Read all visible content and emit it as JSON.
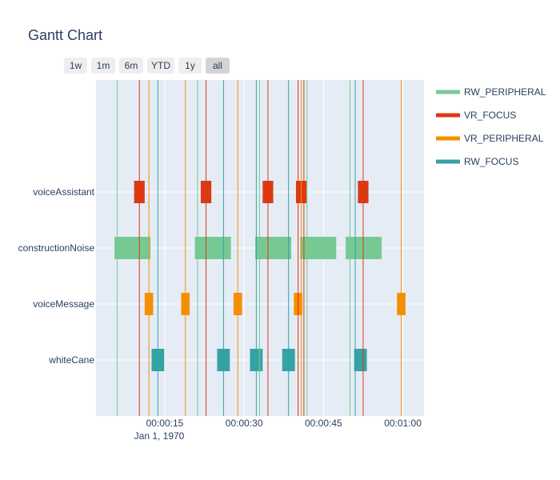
{
  "chart_data": {
    "type": "gantt",
    "title": "Gantt Chart",
    "x_axis": {
      "type": "time",
      "range_seconds": [
        2.0,
        64.0
      ],
      "tick_seconds": [
        15,
        30,
        45,
        60
      ],
      "tick_labels": [
        "00:00:15",
        "00:00:30",
        "00:00:45",
        "00:01:00"
      ],
      "date_label": "Jan 1, 1970"
    },
    "y_axis": {
      "categories": [
        "whiteCane",
        "voiceMessage",
        "constructionNoise",
        "voiceAssistant"
      ]
    },
    "range_selector": [
      "1w",
      "1m",
      "6m",
      "YTD",
      "1y",
      "all"
    ],
    "range_selector_active": "all",
    "legend": [
      "RW_PERIPHERAL",
      "VR_FOCUS",
      "VR_PERIPHERAL",
      "RW_FOCUS"
    ],
    "colors": {
      "RW_PERIPHERAL": "#77c993",
      "VR_FOCUS": "#dc3912",
      "VR_PERIPHERAL": "#f58f00",
      "RW_FOCUS": "#34a3a3"
    },
    "tasks": [
      {
        "task": "voiceAssistant",
        "type": "VR_FOCUS",
        "start": 9.2,
        "end": 11.2
      },
      {
        "task": "voiceAssistant",
        "type": "VR_FOCUS",
        "start": 21.8,
        "end": 23.8
      },
      {
        "task": "voiceAssistant",
        "type": "VR_FOCUS",
        "start": 33.5,
        "end": 35.5
      },
      {
        "task": "voiceAssistant",
        "type": "VR_FOCUS",
        "start": 39.8,
        "end": 41.8
      },
      {
        "task": "voiceAssistant",
        "type": "VR_FOCUS",
        "start": 51.5,
        "end": 53.5
      },
      {
        "task": "constructionNoise",
        "type": "RW_PERIPHERAL",
        "start": 5.5,
        "end": 12.3
      },
      {
        "task": "constructionNoise",
        "type": "RW_PERIPHERAL",
        "start": 20.7,
        "end": 27.5
      },
      {
        "task": "constructionNoise",
        "type": "RW_PERIPHERAL",
        "start": 32.1,
        "end": 38.9
      },
      {
        "task": "constructionNoise",
        "type": "RW_PERIPHERAL",
        "start": 40.6,
        "end": 47.4
      },
      {
        "task": "constructionNoise",
        "type": "RW_PERIPHERAL",
        "start": 49.2,
        "end": 56.0
      },
      {
        "task": "voiceMessage",
        "type": "VR_PERIPHERAL",
        "start": 11.2,
        "end": 12.8
      },
      {
        "task": "voiceMessage",
        "type": "VR_PERIPHERAL",
        "start": 18.1,
        "end": 19.7
      },
      {
        "task": "voiceMessage",
        "type": "VR_PERIPHERAL",
        "start": 28.0,
        "end": 29.6
      },
      {
        "task": "voiceMessage",
        "type": "VR_PERIPHERAL",
        "start": 39.4,
        "end": 41.0
      },
      {
        "task": "voiceMessage",
        "type": "VR_PERIPHERAL",
        "start": 58.9,
        "end": 60.5
      },
      {
        "task": "whiteCane",
        "type": "RW_FOCUS",
        "start": 12.5,
        "end": 14.9
      },
      {
        "task": "whiteCane",
        "type": "RW_FOCUS",
        "start": 24.9,
        "end": 27.3
      },
      {
        "task": "whiteCane",
        "type": "RW_FOCUS",
        "start": 31.1,
        "end": 33.5
      },
      {
        "task": "whiteCane",
        "type": "RW_FOCUS",
        "start": 37.2,
        "end": 39.6
      },
      {
        "task": "whiteCane",
        "type": "RW_FOCUS",
        "start": 50.8,
        "end": 53.2
      }
    ],
    "event_lines": [
      {
        "type": "RW_PERIPHERAL",
        "x": 6.0
      },
      {
        "type": "VR_FOCUS",
        "x": 10.2
      },
      {
        "type": "VR_PERIPHERAL",
        "x": 12.0
      },
      {
        "type": "RW_FOCUS",
        "x": 13.7
      },
      {
        "type": "VR_PERIPHERAL",
        "x": 18.9
      },
      {
        "type": "RW_PERIPHERAL",
        "x": 21.2
      },
      {
        "type": "VR_FOCUS",
        "x": 22.8
      },
      {
        "type": "RW_FOCUS",
        "x": 26.1
      },
      {
        "type": "VR_PERIPHERAL",
        "x": 28.8
      },
      {
        "type": "RW_FOCUS",
        "x": 32.3
      },
      {
        "type": "RW_PERIPHERAL",
        "x": 32.9
      },
      {
        "type": "VR_FOCUS",
        "x": 34.5
      },
      {
        "type": "RW_FOCUS",
        "x": 38.4
      },
      {
        "type": "VR_FOCUS",
        "x": 40.2
      },
      {
        "type": "VR_PERIPHERAL",
        "x": 40.8
      },
      {
        "type": "VR_FOCUS",
        "x": 41.3
      },
      {
        "type": "RW_PERIPHERAL",
        "x": 41.9
      },
      {
        "type": "RW_PERIPHERAL",
        "x": 50.0
      },
      {
        "type": "RW_FOCUS",
        "x": 51.0
      },
      {
        "type": "VR_FOCUS",
        "x": 52.5
      },
      {
        "type": "VR_PERIPHERAL",
        "x": 59.7
      }
    ]
  }
}
